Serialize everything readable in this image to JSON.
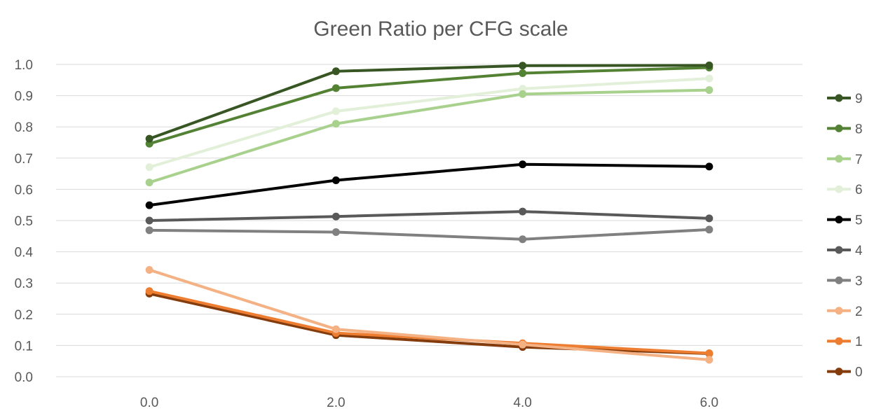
{
  "chart_data": {
    "type": "line",
    "title": "Green Ratio per CFG scale",
    "xlabel": "",
    "ylabel": "",
    "x": [
      0.0,
      2.0,
      4.0,
      6.0
    ],
    "x_tick_labels": [
      "0.0",
      "2.0",
      "4.0",
      "6.0"
    ],
    "xlim": [
      -1,
      7
    ],
    "ylim": [
      0,
      1
    ],
    "y_ticks": [
      0.0,
      0.1,
      0.2,
      0.3,
      0.4,
      0.5,
      0.6,
      0.7,
      0.8,
      0.9,
      1.0
    ],
    "y_tick_labels": [
      "0.0",
      "0.1",
      "0.2",
      "0.3",
      "0.4",
      "0.5",
      "0.6",
      "0.7",
      "0.8",
      "0.9",
      "1.0"
    ],
    "grid": "horizontal",
    "legend_position": "right",
    "series": [
      {
        "name": "0",
        "color": "#843c0c",
        "values": [
          0.266,
          0.133,
          0.095,
          0.074
        ]
      },
      {
        "name": "1",
        "color": "#ed7d31",
        "values": [
          0.274,
          0.14,
          0.107,
          0.075
        ]
      },
      {
        "name": "2",
        "color": "#f4b183",
        "values": [
          0.342,
          0.152,
          0.103,
          0.054
        ]
      },
      {
        "name": "3",
        "color": "#808080",
        "values": [
          0.469,
          0.463,
          0.44,
          0.471
        ]
      },
      {
        "name": "4",
        "color": "#595959",
        "values": [
          0.5,
          0.513,
          0.529,
          0.507
        ]
      },
      {
        "name": "5",
        "color": "#000000",
        "values": [
          0.549,
          0.629,
          0.68,
          0.673
        ]
      },
      {
        "name": "6",
        "color": "#e2efd9",
        "values": [
          0.671,
          0.85,
          0.922,
          0.955
        ]
      },
      {
        "name": "7",
        "color": "#a9d18e",
        "values": [
          0.622,
          0.81,
          0.905,
          0.918
        ]
      },
      {
        "name": "8",
        "color": "#548235",
        "values": [
          0.746,
          0.924,
          0.972,
          0.99
        ]
      },
      {
        "name": "9",
        "color": "#375623",
        "values": [
          0.762,
          0.978,
          0.996,
          0.997
        ]
      }
    ]
  }
}
